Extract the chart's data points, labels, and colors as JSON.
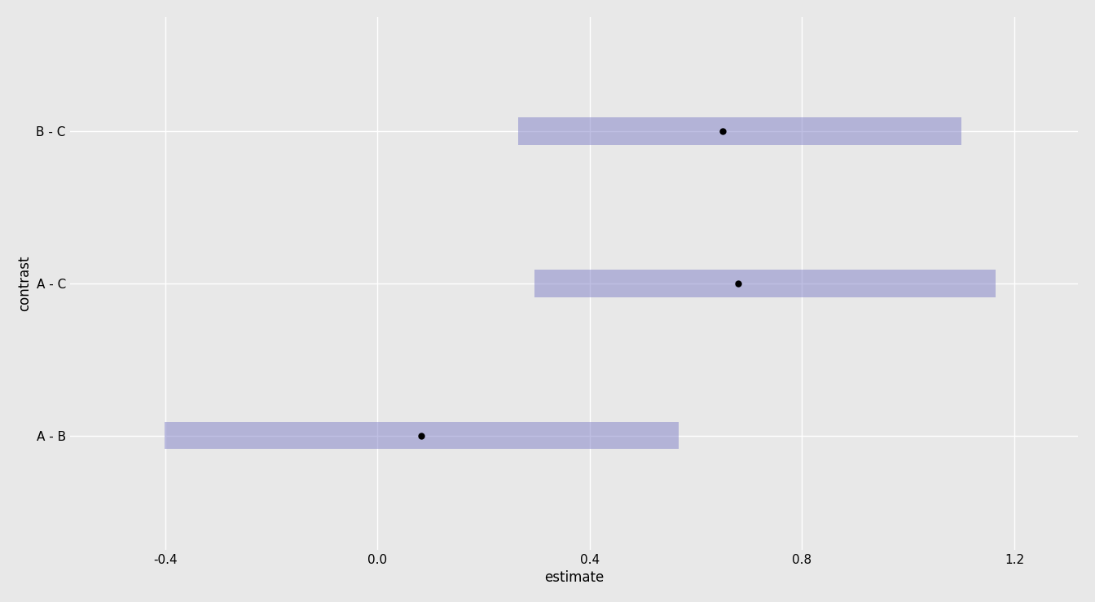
{
  "contrasts": [
    "B - C",
    "A - C",
    "A - B"
  ],
  "estimates": [
    0.651,
    0.68,
    0.083
  ],
  "ci_lower": [
    0.265,
    0.295,
    -0.402
  ],
  "ci_upper": [
    1.1,
    1.165,
    0.568
  ],
  "bar_color": "#8080c8",
  "bar_alpha": 0.5,
  "bar_height": 0.18,
  "point_color": "#000000",
  "point_size": 6,
  "xlabel": "estimate",
  "ylabel": "contrast",
  "xlim": [
    -0.58,
    1.32
  ],
  "xticks": [
    -0.4,
    0.0,
    0.4,
    0.8,
    1.2
  ],
  "xtick_labels": [
    "-0.4",
    "0.0",
    "0.4",
    "0.8",
    "1.2"
  ],
  "bg_color": "#e8e8e8",
  "grid_color": "#ffffff",
  "axis_fontsize": 12,
  "tick_fontsize": 11,
  "ylabel_fontsize": 12
}
